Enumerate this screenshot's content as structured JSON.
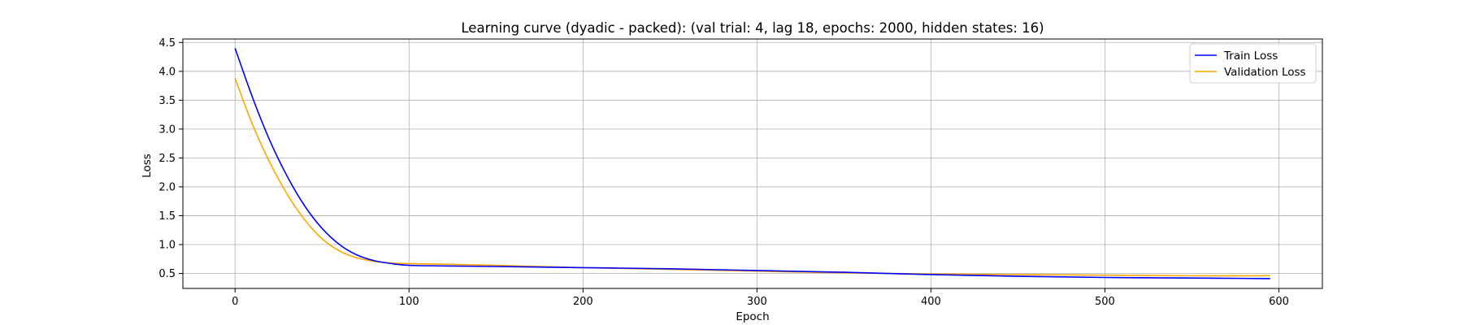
{
  "chart_data": {
    "type": "line",
    "title": "Learning curve (dyadic - packed): (val trial: 4, lag 18, epochs: 2000, hidden states: 16)",
    "xlabel": "Epoch",
    "ylabel": "Loss",
    "xlim": [
      -30,
      625
    ],
    "ylim": [
      0.24,
      4.56
    ],
    "xticks": [
      0,
      100,
      200,
      300,
      400,
      500,
      600
    ],
    "yticks": [
      0.5,
      1.0,
      1.5,
      2.0,
      2.5,
      3.0,
      3.5,
      4.0,
      4.5
    ],
    "xtick_labels": [
      "0",
      "100",
      "200",
      "300",
      "400",
      "500",
      "600"
    ],
    "ytick_labels": [
      "0.5",
      "1.0",
      "1.5",
      "2.0",
      "2.5",
      "3.0",
      "3.5",
      "4.0",
      "4.5"
    ],
    "grid": true,
    "legend_position": "top-right",
    "series": [
      {
        "name": "Train Loss",
        "color": "#0000ff",
        "x": [
          0,
          10,
          20,
          30,
          40,
          50,
          60,
          70,
          80,
          90,
          100,
          120,
          150,
          200,
          250,
          300,
          350,
          400,
          450,
          500,
          550,
          595
        ],
        "y": [
          4.4,
          3.55,
          2.8,
          2.18,
          1.67,
          1.28,
          1.0,
          0.82,
          0.72,
          0.67,
          0.64,
          0.63,
          0.62,
          0.6,
          0.58,
          0.55,
          0.52,
          0.48,
          0.45,
          0.43,
          0.42,
          0.41
        ]
      },
      {
        "name": "Validation Loss",
        "color": "#ffa500",
        "x": [
          0,
          10,
          20,
          30,
          40,
          50,
          60,
          70,
          80,
          90,
          100,
          120,
          150,
          200,
          250,
          300,
          350,
          400,
          450,
          500,
          550,
          595
        ],
        "y": [
          3.88,
          3.08,
          2.42,
          1.87,
          1.43,
          1.1,
          0.89,
          0.77,
          0.71,
          0.68,
          0.67,
          0.66,
          0.64,
          0.6,
          0.57,
          0.54,
          0.51,
          0.49,
          0.48,
          0.47,
          0.46,
          0.46
        ]
      }
    ]
  }
}
